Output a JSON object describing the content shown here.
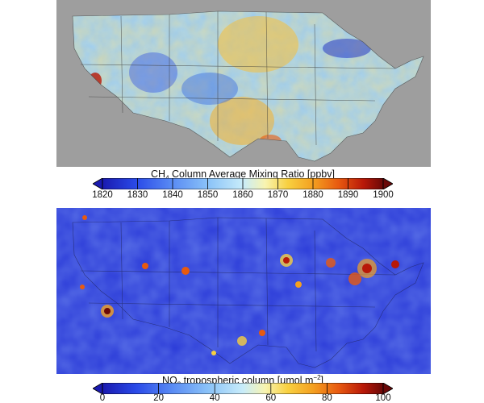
{
  "panels": [
    {
      "id": "ch4",
      "title_prefix": "CH",
      "title_sub": "4",
      "title_suffix": " Column Average Mixing Ratio [ppbv]",
      "ticks": [
        "1820",
        "1830",
        "1840",
        "1850",
        "1860",
        "1870",
        "1880",
        "1890",
        "1900"
      ],
      "range": [
        1820,
        1900
      ],
      "colors": {
        "land_background": "#9e9e9e",
        "low": "#1a26c8",
        "mid": "#a8d8f0",
        "high": "#7a0a0a"
      }
    },
    {
      "id": "no2",
      "title_prefix": "NO",
      "title_sub": "2",
      "title_mid": " tropospheric column [μmol m",
      "title_sup": "−2",
      "title_end": "]",
      "ticks": [
        "0",
        "20",
        "40",
        "60",
        "80",
        "100"
      ],
      "range": [
        0,
        100
      ],
      "colors": {
        "background": "#2a3ad8",
        "low": "#1a26c8",
        "high": "#7a0a0a"
      }
    }
  ],
  "colormap": [
    "#1a1ab0",
    "#2a4ae8",
    "#5a8cf4",
    "#8cc4f8",
    "#c8ecfa",
    "#f8f4b0",
    "#f8d040",
    "#f4a020",
    "#e85a10",
    "#b81808",
    "#6a0808"
  ]
}
